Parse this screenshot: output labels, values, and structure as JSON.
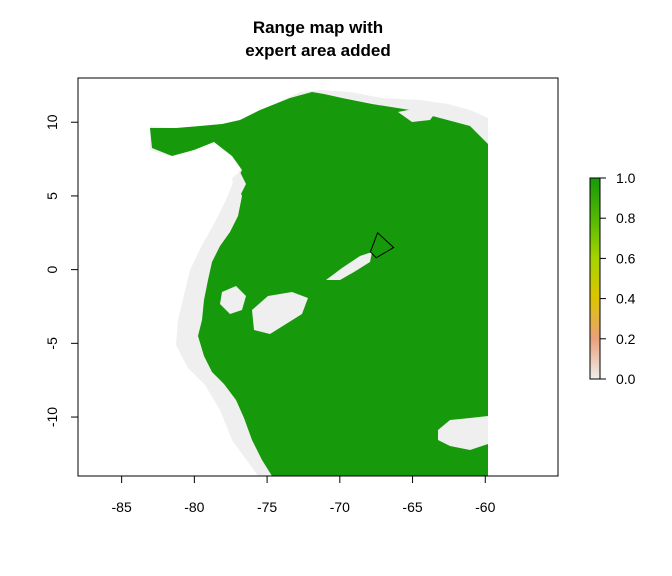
{
  "title_lines": [
    "Range map with",
    "expert area added"
  ],
  "map": {
    "xlim": [
      -88,
      -55
    ],
    "ylim": [
      -14,
      13
    ],
    "x_ticks": [
      -85,
      -80,
      -75,
      -70,
      -65,
      -60
    ],
    "y_ticks": [
      10,
      5,
      0,
      -5,
      -10
    ],
    "x_tick_labels": [
      "-85",
      "-80",
      "-75",
      "-70",
      "-65",
      "-60"
    ],
    "y_tick_labels": [
      "10",
      "5",
      "0",
      "-5",
      "-10"
    ],
    "colors": {
      "presence": "#16990a",
      "absence": "#efefef",
      "frame": "#000000"
    },
    "expert_area_polygon": [
      [
        -67.4,
        2.5
      ],
      [
        -66.3,
        1.5
      ],
      [
        -67.5,
        0.8
      ],
      [
        -67.9,
        1.2
      ]
    ]
  },
  "legend": {
    "ticks": [
      1.0,
      0.8,
      0.6,
      0.4,
      0.2,
      0.0
    ],
    "tick_labels": [
      "1.0",
      "0.8",
      "0.6",
      "0.4",
      "0.2",
      "0.0"
    ],
    "gradient": [
      "#efefef",
      "#e9a07a",
      "#ddc400",
      "#a6d400",
      "#52b803",
      "#16990a"
    ]
  }
}
